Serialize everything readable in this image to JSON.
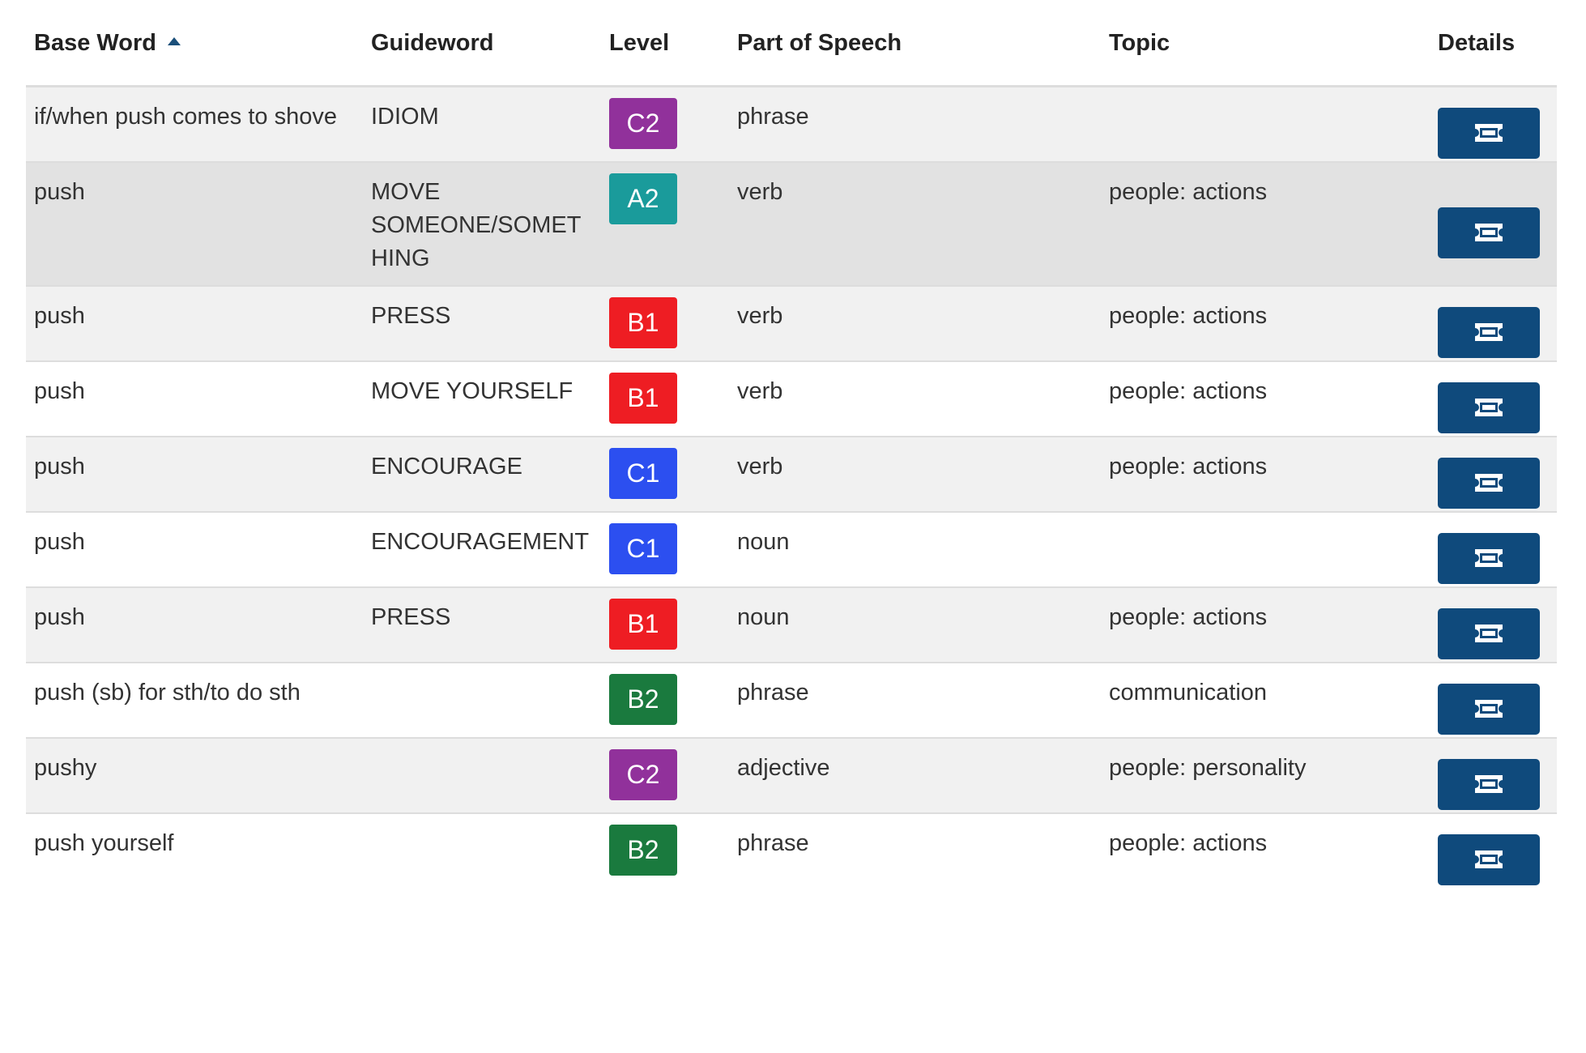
{
  "headers": {
    "base_word": "Base Word",
    "guideword": "Guideword",
    "level": "Level",
    "part_of_speech": "Part of Speech",
    "topic": "Topic",
    "details": "Details"
  },
  "sort": {
    "column": "base_word",
    "direction": "ascending"
  },
  "level_colors": {
    "A2": "#1a9b9b",
    "B1": "#ee1d23",
    "B2": "#1a7a3e",
    "C1": "#2c4ff0",
    "C2": "#91319b"
  },
  "details_button": {
    "color": "#0f4a7c",
    "icon": "ticket-icon"
  },
  "rows": [
    {
      "base_word": "if/when push comes to shove",
      "guideword": "IDIOM",
      "level": "C2",
      "part_of_speech": "phrase",
      "topic": ""
    },
    {
      "base_word": "push",
      "guideword": "MOVE SOMEONE/SOMETHING",
      "level": "A2",
      "part_of_speech": "verb",
      "topic": "people: actions"
    },
    {
      "base_word": "push",
      "guideword": "PRESS",
      "level": "B1",
      "part_of_speech": "verb",
      "topic": "people: actions"
    },
    {
      "base_word": "push",
      "guideword": "MOVE YOURSELF",
      "level": "B1",
      "part_of_speech": "verb",
      "topic": "people: actions"
    },
    {
      "base_word": "push",
      "guideword": "ENCOURAGE",
      "level": "C1",
      "part_of_speech": "verb",
      "topic": "people: actions"
    },
    {
      "base_word": "push",
      "guideword": "ENCOURAGEMENT",
      "level": "C1",
      "part_of_speech": "noun",
      "topic": ""
    },
    {
      "base_word": "push",
      "guideword": "PRESS",
      "level": "B1",
      "part_of_speech": "noun",
      "topic": "people: actions"
    },
    {
      "base_word": "push (sb) for sth/to do sth",
      "guideword": "",
      "level": "B2",
      "part_of_speech": "phrase",
      "topic": "communication"
    },
    {
      "base_word": "pushy",
      "guideword": "",
      "level": "C2",
      "part_of_speech": "adjective",
      "topic": "people: personality"
    },
    {
      "base_word": "push yourself",
      "guideword": "",
      "level": "B2",
      "part_of_speech": "phrase",
      "topic": "people: actions"
    }
  ]
}
